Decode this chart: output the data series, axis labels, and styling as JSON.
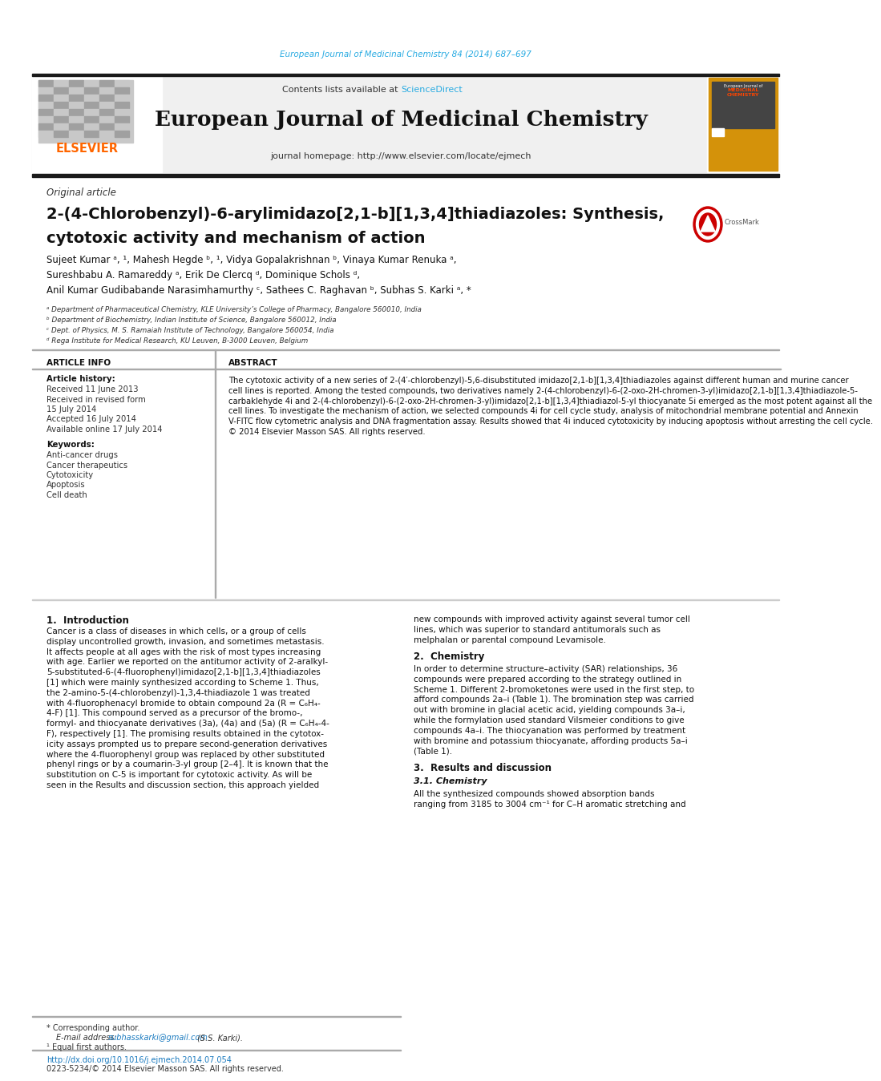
{
  "page_bg": "#ffffff",
  "header_cite_color": "#29ABE2",
  "header_cite_text": "European Journal of Medicinal Chemistry 84 (2014) 687–697",
  "journal_header_bg": "#f0f0f0",
  "journal_title": "European Journal of Medicinal Chemistry",
  "journal_homepage": "journal homepage: http://www.elsevier.com/locate/ejmech",
  "contents_text": "Contents lists available at ",
  "sciencedirect_text": "ScienceDirect",
  "sciencedirect_color": "#29ABE2",
  "elsevier_color": "#FF6600",
  "elsevier_text": "ELSEVIER",
  "article_type": "Original article",
  "paper_title_line1": "2-(4-Chlorobenzyl)-6-arylimidazo[2,1-b][1,3,4]thiadiazoles: Synthesis,",
  "paper_title_line2": "cytotoxic activity and mechanism of action",
  "author_line1": "Sujeet Kumar ᵃ, ¹, Mahesh Hegde ᵇ, ¹, Vidya Gopalakrishnan ᵇ, Vinaya Kumar Renuka ᵃ,",
  "author_line2": "Sureshbabu A. Ramareddy ᵃ, Erik De Clercq ᵈ, Dominique Schols ᵈ,",
  "author_line3": "Anil Kumar Gudibabande Narasimhamurthy ᶜ, Sathees C. Raghavan ᵇ, Subhas S. Karki ᵃ, *",
  "affil_a": "ᵃ Department of Pharmaceutical Chemistry, KLE University’s College of Pharmacy, Bangalore 560010, India",
  "affil_b": "ᵇ Department of Biochemistry, Indian Institute of Science, Bangalore 560012, India",
  "affil_c": "ᶜ Dept. of Physics, M. S. Ramaiah Institute of Technology, Bangalore 560054, India",
  "affil_d": "ᵈ Rega Institute for Medical Research, KU Leuven, B-3000 Leuven, Belgium",
  "article_info_title": "ARTICLE INFO",
  "article_history_title": "Article history:",
  "keywords_title": "Keywords:",
  "keywords": [
    "Anti-cancer drugs",
    "Cancer therapeutics",
    "Cytotoxicity",
    "Apoptosis",
    "Cell death"
  ],
  "abstract_title": "ABSTRACT",
  "abstract_lines": [
    "The cytotoxic activity of a new series of 2-(4′-chlorobenzyl)-5,6-disubstituted imidazo[2,1-b][1,3,4]thiadiazoles against different human and murine cancer",
    "cell lines is reported. Among the tested compounds, two derivatives namely 2-(4-chlorobenzyl)-6-(2-oxo-2H-chromen-3-yl)imidazo[2,1-b][1,3,4]thiadiazole-5-",
    "carbaklehyde 4i and 2-(4-chlorobenzyl)-6-(2-oxo-2H-chromen-3-yl)imidazo[2,1-b][1,3,4]thiadiazol-5-yl thiocyanate 5i emerged as the most potent against all the",
    "cell lines. To investigate the mechanism of action, we selected compounds 4i for cell cycle study, analysis of mitochondrial membrane potential and Annexin",
    "V-FITC flow cytometric analysis and DNA fragmentation assay. Results showed that 4i induced cytotoxicity by inducing apoptosis without arresting the cell cycle.",
    "© 2014 Elsevier Masson SAS. All rights reserved."
  ],
  "section1_title": "1.  Introduction",
  "intro_left": [
    "Cancer is a class of diseases in which cells, or a group of cells",
    "display uncontrolled growth, invasion, and sometimes metastasis.",
    "It affects people at all ages with the risk of most types increasing",
    "with age. Earlier we reported on the antitumor activity of 2-aralkyl-",
    "5-substituted-6-(4-fluorophenyl)imidazo[2,1-b][1,3,4]thiadiazoles",
    "[1] which were mainly synthesized according to Scheme 1. Thus,",
    "the 2-amino-5-(4-chlorobenzyl)-1,3,4-thiadiazole 1 was treated",
    "with 4-fluorophenacyl bromide to obtain compound 2a (R = C₆H₄-",
    "4-F) [1]. This compound served as a precursor of the bromo-,",
    "formyl- and thiocyanate derivatives (3a), (4a) and (5a) (R = C₆H₄-4-",
    "F), respectively [1]. The promising results obtained in the cytotox-",
    "icity assays prompted us to prepare second-generation derivatives",
    "where the 4-fluorophenyl group was replaced by other substituted",
    "phenyl rings or by a coumarin-3-yl group [2–4]. It is known that the",
    "substitution on C-5 is important for cytotoxic activity. As will be",
    "seen in the Results and discussion section, this approach yielded"
  ],
  "intro_right": [
    "new compounds with improved activity against several tumor cell",
    "lines, which was superior to standard antitumorals such as",
    "melphalan or parental compound Levamisole."
  ],
  "section2_title": "2.  Chemistry",
  "chem_lines": [
    "In order to determine structure–activity (SAR) relationships, 36",
    "compounds were prepared according to the strategy outlined in",
    "Scheme 1. Different 2-bromoketones were used in the first step, to",
    "afford compounds 2a–i (Table 1). The bromination step was carried",
    "out with bromine in glacial acetic acid, yielding compounds 3a–i,",
    "while the formylation used standard Vilsmeier conditions to give",
    "compounds 4a–i. The thiocyanation was performed by treatment",
    "with bromine and potassium thiocyanate, affording products 5a–i",
    "(Table 1)."
  ],
  "section3_title": "3.  Results and discussion",
  "section31_title": "3.1. Chemistry",
  "section31_lines": [
    "All the synthesized compounds showed absorption bands",
    "ranging from 3185 to 3004 cm⁻¹ for C–H aromatic stretching and"
  ],
  "footer_corr": "* Corresponding author.",
  "footer_email_label": "E-mail address: ",
  "footer_email": "subhasskarki@gmail.com",
  "footer_email_suffix": " (S.S. Karki).",
  "footer_equal": "¹ Equal first authors.",
  "footer_doi": "http://dx.doi.org/10.1016/j.ejmech.2014.07.054",
  "footer_issn": "0223-5234/© 2014 Elsevier Masson SAS. All rights reserved.",
  "link_color": "#1a7abf",
  "black_bar_color": "#1a1a1a",
  "history_items": [
    "Received 11 June 2013",
    "Received in revised form",
    "15 July 2014",
    "Accepted 16 July 2014",
    "Available online 17 July 2014"
  ]
}
